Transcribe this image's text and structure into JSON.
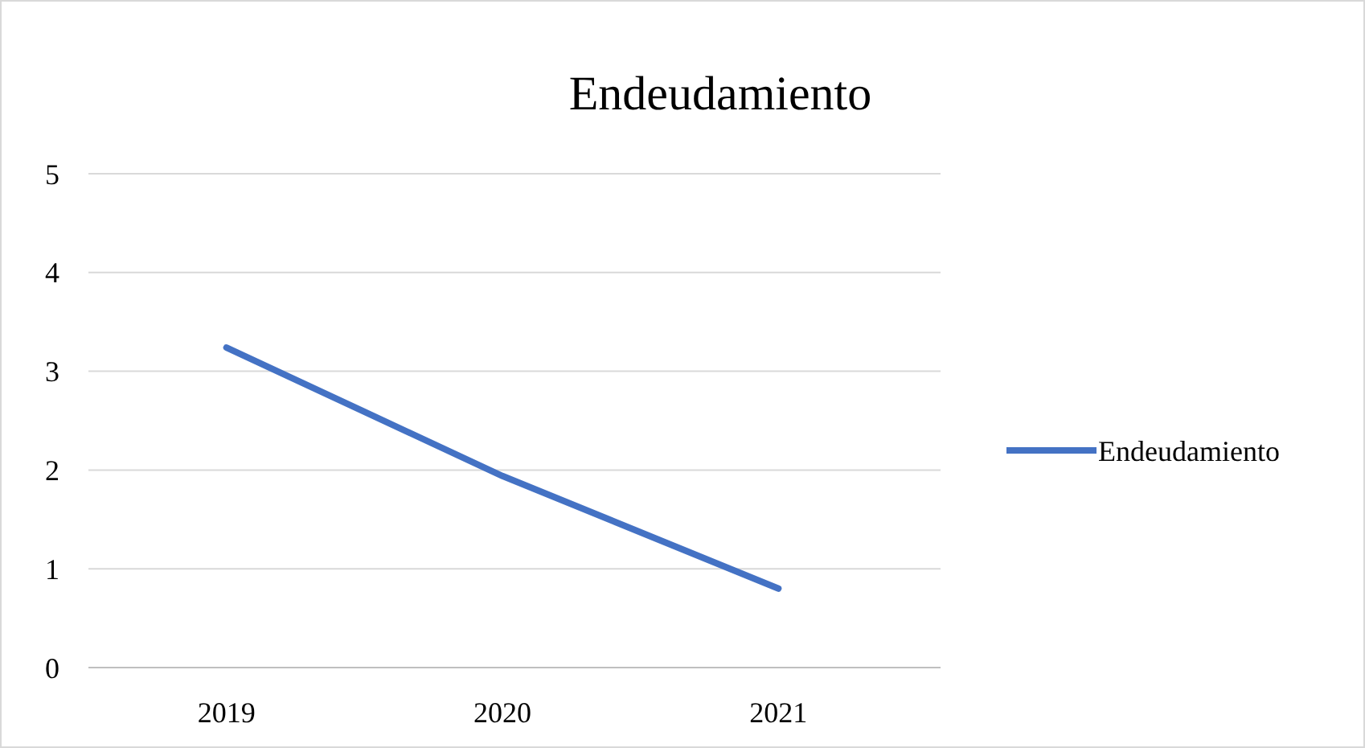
{
  "chart_data": {
    "type": "line",
    "title": "Endeudamiento",
    "categories": [
      "2019",
      "2020",
      "2021"
    ],
    "series": [
      {
        "name": "Endeudamiento",
        "color": "#4472c4",
        "values": [
          3.24,
          1.94,
          0.8
        ]
      }
    ],
    "ylim": [
      0,
      5
    ],
    "yticks": [
      0,
      1,
      2,
      3,
      4,
      5
    ],
    "grid": "y",
    "legend": "right",
    "marker": "none",
    "line_style": "solid"
  }
}
